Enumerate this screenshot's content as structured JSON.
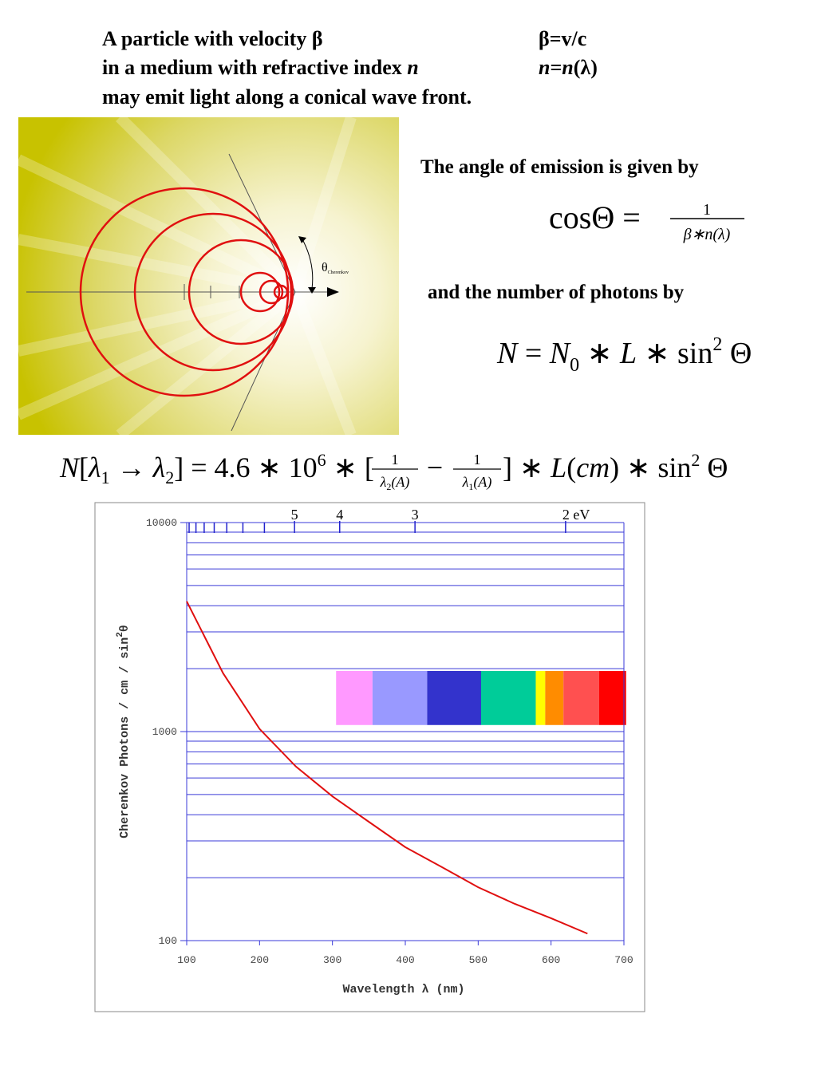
{
  "intro": {
    "line1": "A particle with velocity β",
    "line2": "in a medium with refractive index ",
    "line2_var": "n",
    "line3": "may emit light along a conical wave front.",
    "beta_def": "β=v/c",
    "n_def": [
      "n",
      "=",
      "n",
      "(λ)"
    ]
  },
  "diagram": {
    "theta": "θ",
    "theta_sub": "Cherenkov"
  },
  "angle": {
    "caption": "The angle of emission is given by",
    "lhs": "cosΘ =",
    "num": "1",
    "den": "β∗n(λ)"
  },
  "photons": {
    "caption": "and the number of photons by",
    "parts": [
      "N",
      " = ",
      "N",
      "0",
      " ∗ ",
      "L",
      " ∗ sin",
      "2",
      " Θ"
    ]
  },
  "formula": {
    "left": [
      "N",
      "[",
      "λ",
      "1",
      " → ",
      "λ",
      "2",
      "] = 4.6 ∗ 10",
      "6",
      " ∗ ["
    ],
    "frac1_num": "1",
    "frac1_den": [
      "λ",
      "2",
      "(A)"
    ],
    "minus": "−",
    "frac2_num": "1",
    "frac2_den": [
      "λ",
      "1",
      "(A)"
    ],
    "right": [
      "] ∗ ",
      "L",
      "(",
      "cm",
      ") ∗ sin",
      "2",
      " Θ"
    ]
  },
  "chart_data": {
    "type": "line",
    "x": [
      100,
      150,
      200,
      250,
      300,
      350,
      400,
      450,
      500,
      550,
      600,
      650
    ],
    "values": [
      4200,
      1900,
      1030,
      680,
      490,
      370,
      280,
      225,
      180,
      150,
      128,
      108
    ],
    "color": "#e01010",
    "xlim": [
      100,
      700
    ],
    "xticks": [
      100,
      200,
      300,
      400,
      500,
      600,
      700
    ],
    "ylim": [
      100,
      10000
    ],
    "yticks": [
      100,
      1000,
      10000
    ],
    "y_grid": [
      200,
      300,
      400,
      500,
      600,
      700,
      800,
      900,
      2000,
      3000,
      4000,
      5000,
      6000,
      7000,
      8000,
      9000
    ],
    "log_y": true,
    "grid": true,
    "grid_color": "#3a3ad8",
    "x_label": "Wavelength λ (nm)",
    "y_label": [
      "Cherenkov Photons / cm / sin",
      "2",
      "θ"
    ],
    "top_axis": {
      "ticks_ev": [
        12,
        11,
        10,
        9,
        8,
        7,
        6,
        5,
        4,
        3,
        2
      ],
      "labels": [
        null,
        null,
        null,
        null,
        null,
        null,
        null,
        "5",
        "4",
        "3",
        "2 eV"
      ]
    },
    "spectrum": {
      "edges": [
        305,
        355,
        430,
        504,
        579,
        592,
        617,
        666,
        703
      ],
      "colors": [
        "#ff99ff",
        "#9999ff",
        "#3333cc",
        "#00cc99",
        "#ffff00",
        "#ff8c00",
        "#ff5050",
        "#ff0000"
      ],
      "ylim": [
        1075,
        1950
      ]
    }
  }
}
